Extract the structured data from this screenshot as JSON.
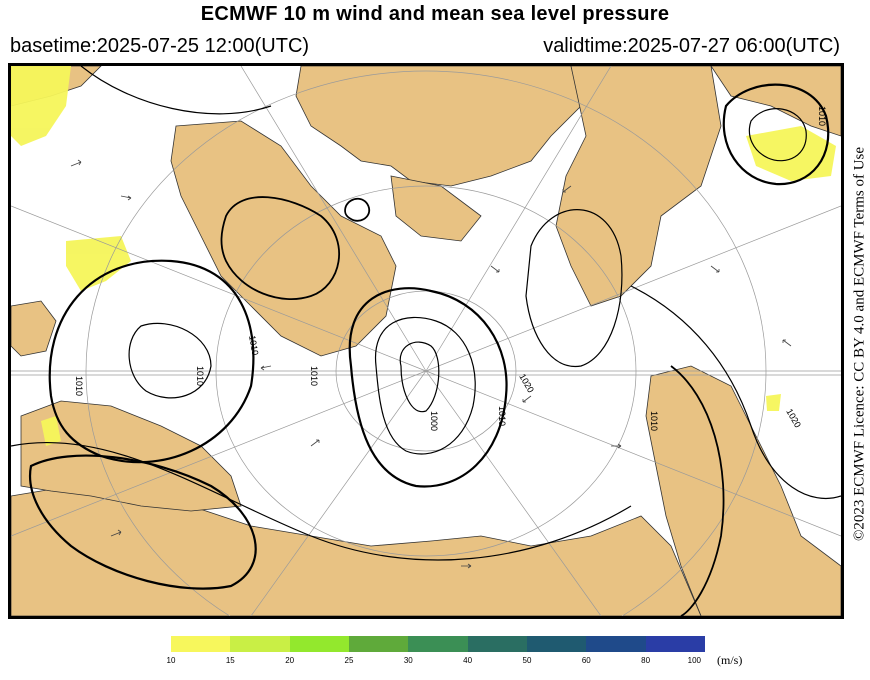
{
  "header": {
    "title": "ECMWF 10 m wind and mean sea level pressure",
    "basetime": "basetime:2025-07-25 12:00(UTC)",
    "validtime": "validtime:2025-07-27 06:00(UTC)"
  },
  "licence": "©2023 ECMWF Licence: CC BY 4.0 and ECMWF Terms of Use",
  "colors": {
    "land": "#e8c283",
    "ocean": "#ffffff",
    "isobar": "#000000",
    "wind_10": "#f5f55a",
    "graticule": "#9a9a9a"
  },
  "contour_labels": [
    "1010",
    "1010",
    "1010",
    "1010",
    "1020",
    "1010",
    "1000",
    "1010",
    "1020",
    "1010"
  ],
  "colorbar": {
    "unit": "(m/s)",
    "ticks": [
      "10",
      "15",
      "20",
      "25",
      "30",
      "40",
      "50",
      "60",
      "80",
      "100"
    ],
    "colors": [
      "#f7f75c",
      "#c9ef45",
      "#93e82d",
      "#5faa3a",
      "#3b8f55",
      "#2a6e62",
      "#1f5a70",
      "#1f4a8a",
      "#2a3da6"
    ]
  }
}
